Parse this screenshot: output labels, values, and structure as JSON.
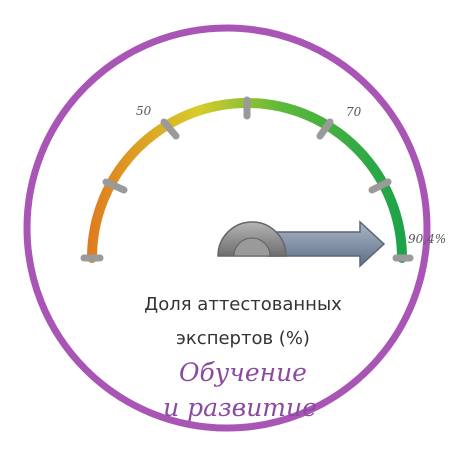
{
  "gauge": {
    "tick_labels": [
      "50",
      "70",
      "90,4%"
    ],
    "value": 90.4,
    "unit": "%",
    "colors": {
      "ring": "#a955b5",
      "arc_low": "#e07a1f",
      "arc_mid": "#d8cc2a",
      "arc_high": "#1ea34a",
      "needle": "#7f8ea3",
      "hub": "#8c8c8c",
      "tick": "#9a9a9a"
    }
  },
  "caption": {
    "line1": "Доля аттестованных",
    "line2": "экспертов (%)"
  },
  "subtitle": {
    "line1": "Обучение",
    "line2": "и развитие"
  }
}
